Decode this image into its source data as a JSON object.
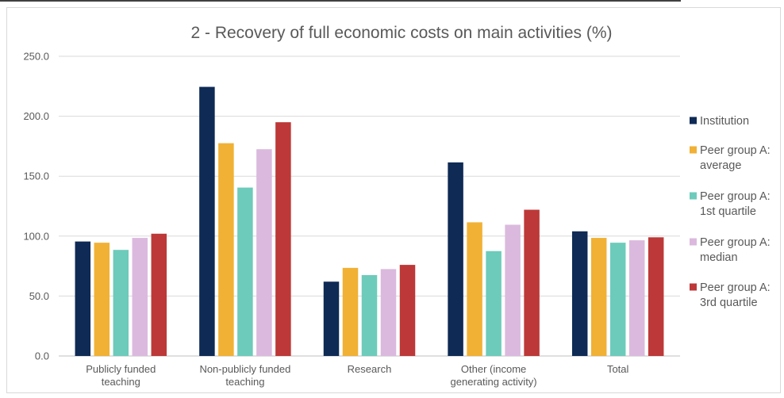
{
  "chart_data": {
    "type": "bar",
    "title": "2 - Recovery of full economic costs on main activities (%)",
    "categories": [
      [
        "Publicly funded",
        "teaching"
      ],
      [
        "Non-publicly funded",
        "teaching"
      ],
      [
        "Research"
      ],
      [
        "Other (income",
        "generating activity)"
      ],
      [
        "Total"
      ]
    ],
    "y_ticks": [
      "0.0",
      "50.0",
      "100.0",
      "150.0",
      "200.0",
      "250.0"
    ],
    "ylim": [
      0,
      250
    ],
    "grid": true,
    "legend_position": "right",
    "series": [
      {
        "name": [
          "Institution"
        ],
        "color": "#0e2a55",
        "values": [
          95.5,
          224.5,
          62,
          161.5,
          104
        ]
      },
      {
        "name": [
          "Peer group A:",
          "average"
        ],
        "color": "#f0b135",
        "values": [
          94.5,
          177.5,
          73.5,
          111.5,
          98.5
        ]
      },
      {
        "name": [
          "Peer group A:",
          "1st quartile"
        ],
        "color": "#6dcbbb",
        "values": [
          88.5,
          140.5,
          67.5,
          87.5,
          94.5
        ]
      },
      {
        "name": [
          "Peer group A:",
          "median"
        ],
        "color": "#dbb9de",
        "values": [
          98.5,
          172.5,
          72.5,
          109.5,
          96.5
        ]
      },
      {
        "name": [
          "Peer group A:",
          "3rd quartile"
        ],
        "color": "#bd3838",
        "values": [
          102,
          195,
          76,
          122,
          99
        ]
      }
    ]
  }
}
